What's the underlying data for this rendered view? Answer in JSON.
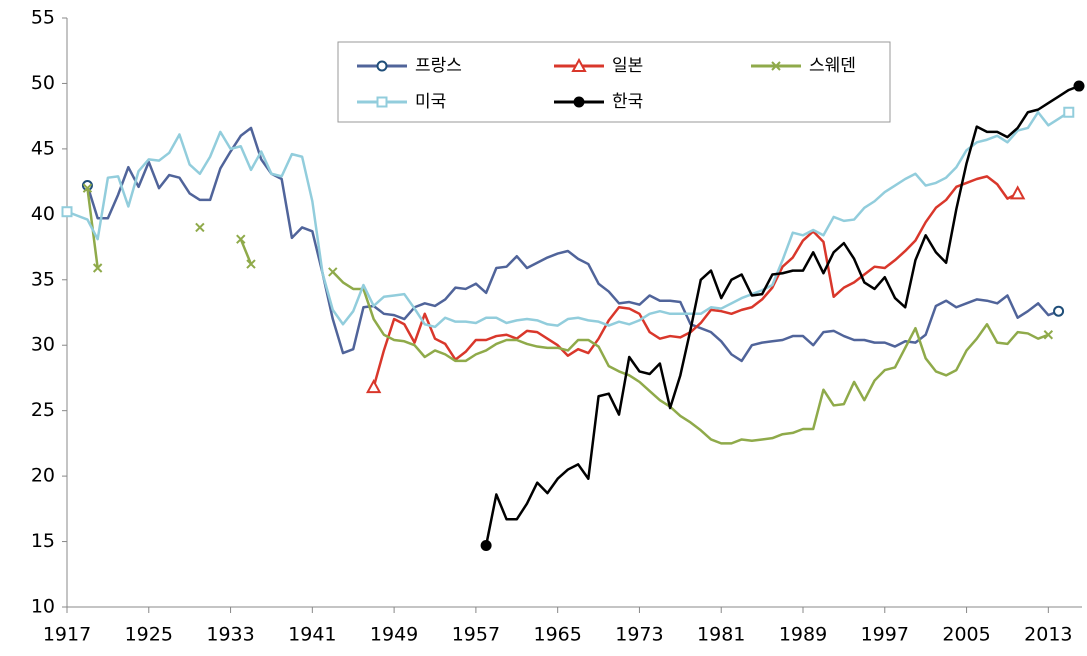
{
  "chart_data": {
    "type": "line",
    "x": [
      1917,
      1918,
      1919,
      1920,
      1921,
      1922,
      1923,
      1924,
      1925,
      1926,
      1927,
      1928,
      1929,
      1930,
      1931,
      1932,
      1933,
      1934,
      1935,
      1936,
      1937,
      1938,
      1939,
      1940,
      1941,
      1942,
      1943,
      1944,
      1945,
      1946,
      1947,
      1948,
      1949,
      1950,
      1951,
      1952,
      1953,
      1954,
      1955,
      1956,
      1957,
      1958,
      1959,
      1960,
      1961,
      1962,
      1963,
      1964,
      1965,
      1966,
      1967,
      1968,
      1969,
      1970,
      1971,
      1972,
      1973,
      1974,
      1975,
      1976,
      1977,
      1978,
      1979,
      1980,
      1981,
      1982,
      1983,
      1984,
      1985,
      1986,
      1987,
      1988,
      1989,
      1990,
      1991,
      1992,
      1993,
      1994,
      1995,
      1996,
      1997,
      1998,
      1999,
      2000,
      2001,
      2002,
      2003,
      2004,
      2005,
      2006,
      2007,
      2008,
      2009,
      2010,
      2011,
      2012,
      2013,
      2014,
      2015,
      2016
    ],
    "series": [
      {
        "name": "프랑스",
        "color": "#50649a",
        "marker": "circle",
        "marker_color": "#1f4e79",
        "values": [
          null,
          null,
          42.2,
          39.7,
          39.7,
          41.5,
          43.6,
          42.1,
          44.0,
          42.0,
          43.0,
          42.8,
          41.6,
          41.1,
          41.1,
          43.5,
          44.8,
          46.0,
          46.6,
          44.2,
          43.1,
          42.7,
          38.2,
          39.0,
          38.7,
          35.5,
          32.0,
          29.4,
          29.7,
          32.9,
          33.0,
          32.4,
          32.3,
          32.0,
          32.9,
          33.2,
          33.0,
          33.5,
          34.4,
          34.3,
          34.7,
          34.0,
          35.9,
          36.0,
          36.8,
          35.9,
          36.3,
          36.7,
          37.0,
          37.2,
          36.6,
          36.2,
          34.7,
          34.1,
          33.2,
          33.3,
          33.1,
          33.8,
          33.4,
          33.4,
          33.3,
          31.6,
          31.3,
          31.0,
          30.3,
          29.3,
          28.8,
          30.0,
          30.2,
          30.3,
          30.4,
          30.7,
          30.7,
          30.0,
          31.0,
          31.1,
          30.7,
          30.4,
          30.4,
          30.2,
          30.2,
          29.9,
          30.3,
          30.2,
          30.8,
          33.0,
          33.4,
          32.9,
          33.2,
          33.5,
          33.4,
          33.2,
          33.8,
          32.1,
          32.6,
          33.2,
          32.3,
          32.6,
          null,
          null
        ]
      },
      {
        "name": "일본",
        "color": "#d9372b",
        "marker": "triangle",
        "marker_color": "#d9372b",
        "values": [
          null,
          null,
          null,
          null,
          null,
          null,
          null,
          null,
          null,
          null,
          null,
          null,
          null,
          null,
          null,
          null,
          null,
          null,
          null,
          null,
          null,
          null,
          null,
          null,
          null,
          null,
          null,
          null,
          null,
          null,
          26.8,
          29.6,
          32.0,
          31.6,
          30.2,
          32.4,
          30.5,
          30.1,
          28.9,
          29.5,
          30.4,
          30.4,
          30.7,
          30.8,
          30.5,
          31.1,
          31.0,
          30.5,
          30.0,
          29.2,
          29.7,
          29.4,
          30.5,
          31.9,
          32.9,
          32.8,
          32.4,
          31.0,
          30.5,
          30.7,
          30.6,
          31.0,
          31.7,
          32.7,
          32.6,
          32.4,
          32.7,
          32.9,
          33.5,
          34.4,
          36.0,
          36.7,
          38.0,
          38.7,
          37.9,
          33.7,
          34.4,
          34.8,
          35.4,
          36.0,
          35.9,
          36.5,
          37.2,
          38.0,
          39.4,
          40.5,
          41.1,
          42.1,
          42.4,
          42.7,
          42.9,
          42.3,
          41.2,
          41.6,
          null,
          null,
          null,
          null,
          null,
          null
        ]
      },
      {
        "name": "스웨덴",
        "color": "#8faa4a",
        "marker": "x",
        "marker_color": "#8faa4a",
        "values": [
          null,
          null,
          42.0,
          35.9,
          null,
          null,
          null,
          null,
          null,
          null,
          null,
          null,
          null,
          39.0,
          null,
          null,
          null,
          38.1,
          36.2,
          null,
          null,
          null,
          null,
          null,
          null,
          null,
          35.6,
          34.8,
          34.3,
          34.3,
          32.0,
          30.8,
          30.4,
          30.3,
          30.0,
          29.1,
          29.6,
          29.3,
          28.8,
          28.8,
          29.3,
          29.6,
          30.1,
          30.4,
          30.4,
          30.1,
          29.9,
          29.8,
          29.8,
          29.6,
          30.4,
          30.4,
          29.9,
          28.4,
          28.0,
          27.7,
          27.2,
          26.5,
          25.8,
          25.3,
          24.6,
          24.1,
          23.5,
          22.8,
          22.5,
          22.5,
          22.8,
          22.7,
          22.8,
          22.9,
          23.2,
          23.3,
          23.6,
          23.6,
          26.6,
          25.4,
          25.5,
          27.2,
          25.8,
          27.3,
          28.1,
          28.3,
          29.8,
          31.3,
          29.0,
          28.0,
          27.7,
          28.1,
          29.6,
          30.5,
          31.6,
          30.2,
          30.1,
          31.0,
          30.9,
          30.5,
          30.8,
          null,
          null,
          null
        ]
      },
      {
        "name": "미국",
        "color": "#92cddc",
        "marker": "square",
        "marker_color": "#92cddc",
        "values": [
          40.2,
          39.9,
          39.6,
          38.1,
          42.8,
          42.9,
          40.6,
          43.3,
          44.2,
          44.1,
          44.7,
          46.1,
          43.8,
          43.1,
          44.4,
          46.3,
          45.0,
          45.2,
          43.4,
          44.8,
          43.1,
          42.9,
          44.6,
          44.4,
          41.0,
          35.5,
          32.7,
          31.6,
          32.6,
          34.6,
          33.0,
          33.7,
          33.8,
          33.9,
          32.8,
          31.6,
          31.4,
          32.1,
          31.8,
          31.8,
          31.7,
          32.1,
          32.1,
          31.7,
          31.9,
          32.0,
          31.9,
          31.6,
          31.5,
          32.0,
          32.1,
          31.9,
          31.8,
          31.5,
          31.8,
          31.6,
          31.9,
          32.4,
          32.6,
          32.4,
          32.4,
          32.4,
          32.4,
          32.9,
          32.8,
          33.2,
          33.6,
          33.9,
          34.2,
          34.6,
          36.5,
          38.6,
          38.4,
          38.8,
          38.4,
          39.8,
          39.5,
          39.6,
          40.5,
          41.0,
          41.7,
          42.2,
          42.7,
          43.1,
          42.2,
          42.4,
          42.8,
          43.6,
          44.9,
          45.5,
          45.7,
          46.0,
          45.5,
          46.4,
          46.6,
          47.8,
          46.8,
          47.3,
          47.8,
          null
        ]
      },
      {
        "name": "한국",
        "color": "#000000",
        "marker": "dot",
        "marker_color": "#000000",
        "values": [
          null,
          null,
          null,
          null,
          null,
          null,
          null,
          null,
          null,
          null,
          null,
          null,
          null,
          null,
          null,
          null,
          null,
          null,
          null,
          null,
          null,
          null,
          null,
          null,
          null,
          null,
          null,
          null,
          null,
          null,
          null,
          null,
          null,
          null,
          null,
          null,
          null,
          null,
          null,
          null,
          null,
          14.7,
          18.6,
          16.7,
          16.7,
          17.9,
          19.5,
          18.7,
          19.8,
          20.5,
          20.9,
          19.8,
          26.1,
          26.3,
          24.7,
          29.1,
          28.0,
          27.8,
          28.6,
          25.2,
          27.7,
          31.2,
          35.0,
          35.7,
          33.6,
          35.0,
          35.4,
          33.8,
          33.9,
          35.4,
          35.5,
          35.7,
          35.7,
          37.1,
          35.5,
          37.1,
          37.8,
          36.6,
          34.8,
          34.3,
          35.2,
          33.6,
          32.9,
          36.5,
          38.4,
          37.1,
          36.3,
          40.4,
          43.9,
          46.7,
          46.3,
          46.3,
          45.9,
          46.6,
          47.8,
          48.0,
          48.5,
          49.0,
          49.5,
          49.8
        ]
      }
    ],
    "xlim": [
      1917,
      2016
    ],
    "xticks": [
      1917,
      1925,
      1933,
      1941,
      1949,
      1957,
      1965,
      1973,
      1981,
      1989,
      1997,
      2005,
      2013
    ],
    "ylim": [
      10,
      55
    ],
    "yticks": [
      10,
      15,
      20,
      25,
      30,
      35,
      40,
      45,
      50,
      55
    ],
    "grid": false
  }
}
